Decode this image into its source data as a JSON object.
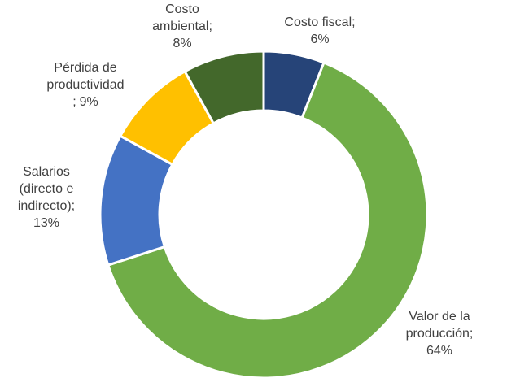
{
  "chart_data": {
    "type": "donut",
    "categories": [
      "Costo fiscal;",
      "Valor de la producción;",
      "Salarios (directo e indirecto);",
      "Pérdida de productividad ;",
      "Costo ambiental;"
    ],
    "values": [
      6,
      64,
      13,
      9,
      8
    ],
    "value_labels": [
      "6%",
      "64%",
      "13%",
      "9%",
      "8%"
    ],
    "colors": [
      "#264478",
      "#70ad47",
      "#4472c4",
      "#ffc000",
      "#43682b"
    ]
  }
}
